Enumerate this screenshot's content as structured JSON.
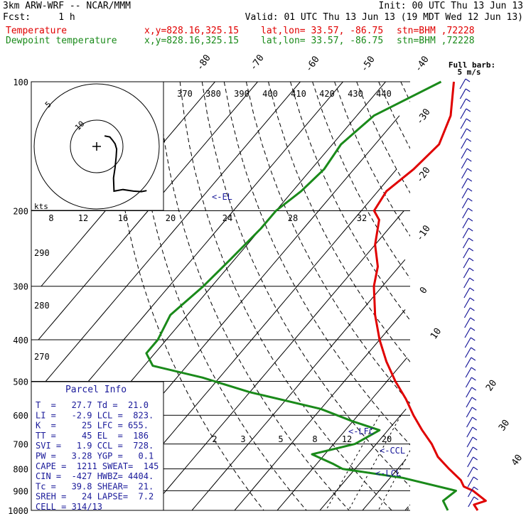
{
  "header": {
    "model": "3km ARW-WRF -- NCAR/MMM",
    "init": "Init: 00 UTC Thu 13 Jun 13",
    "fcst": "Fcst:     1 h",
    "valid": "Valid: 01 UTC Thu 13 Jun 13 (19 MDT Wed 12 Jun 13)",
    "temp_line": {
      "name": "Temperature",
      "xy": "x,y=828.16,325.15",
      "latlon": "lat,lon= 33.57, -86.75",
      "stn": "stn=BHM ,72228"
    },
    "dew_line": {
      "name": "Dewpoint temperature",
      "xy": "x,y=828.16,325.15",
      "latlon": "lat,lon= 33.57, -86.75",
      "stn": "stn=BHM ,72228"
    }
  },
  "colors": {
    "temperature": "#e00000",
    "dewpoint": "#1a8a1a",
    "wind": "#1a1a9a",
    "hodograph": "#000000",
    "grid": "#000000"
  },
  "barb_key": {
    "title": "Full barb:",
    "value": "5 m/s"
  },
  "parcel_info": {
    "title": "Parcel Info",
    "rows": [
      "T  =   27.7 Td =  21.0",
      "LI =   -2.9 LCL =  823.",
      "K  =     25 LFC = 655.",
      "TT =     45 EL  =  186",
      "SVI =   1.9 CCL =  728.",
      "PW =   3.28 YGP =   0.1",
      "CAPE =  1211 SWEAT=  145",
      "CIN =  -427 HWBZ= 4404.",
      "Tc =   39.8 SHEAR=  21.",
      "SREH =   24 LAPSE=  7.2",
      "CELL = 314/13"
    ]
  },
  "chart_data": {
    "type": "line",
    "diagram": "skew-T log-p",
    "pressure_levels": [
      100,
      200,
      300,
      400,
      500,
      600,
      700,
      800,
      900,
      1000
    ],
    "pressure_labels": [
      "100",
      "200",
      "300",
      "400",
      "500",
      "600",
      "700",
      "800",
      "900",
      "1000"
    ],
    "isotherm_labels": [
      "-80",
      "-70",
      "-60",
      "-50",
      "-40",
      "-30",
      "-20",
      "-10",
      "0",
      "10",
      "20",
      "30",
      "40"
    ],
    "theta_labels": [
      "370",
      "380",
      "390",
      "400",
      "410",
      "420",
      "430",
      "440"
    ],
    "dry_adiabat_labels": [
      "290",
      "280",
      "270"
    ],
    "mixing_ratio_labels": [
      "2",
      "3",
      "5",
      "8",
      "12",
      "20"
    ],
    "annotations": [
      "<-EL",
      "<-LFC",
      "<-CCL",
      "<-LCL"
    ],
    "series": [
      {
        "name": "Temperature",
        "points": [
          [
            100,
            -64
          ],
          [
            120,
            -58
          ],
          [
            140,
            -55
          ],
          [
            160,
            -56
          ],
          [
            180,
            -58
          ],
          [
            200,
            -57
          ],
          [
            210,
            -54
          ],
          [
            240,
            -50
          ],
          [
            270,
            -45
          ],
          [
            300,
            -42
          ],
          [
            350,
            -36
          ],
          [
            400,
            -30
          ],
          [
            450,
            -24
          ],
          [
            500,
            -18
          ],
          [
            550,
            -12
          ],
          [
            600,
            -7
          ],
          [
            650,
            -2
          ],
          [
            700,
            3
          ],
          [
            750,
            7
          ],
          [
            800,
            12
          ],
          [
            850,
            17
          ],
          [
            880,
            19
          ],
          [
            900,
            22
          ],
          [
            950,
            27
          ],
          [
            970,
            25
          ],
          [
            1000,
            27
          ]
        ]
      },
      {
        "name": "Dewpoint temperature",
        "points": [
          [
            100,
            -67
          ],
          [
            120,
            -76
          ],
          [
            140,
            -78
          ],
          [
            160,
            -77
          ],
          [
            180,
            -78
          ],
          [
            200,
            -80
          ],
          [
            220,
            -80
          ],
          [
            260,
            -81
          ],
          [
            300,
            -82
          ],
          [
            350,
            -84
          ],
          [
            400,
            -82
          ],
          [
            430,
            -82
          ],
          [
            460,
            -78
          ],
          [
            490,
            -64
          ],
          [
            530,
            -50
          ],
          [
            580,
            -30
          ],
          [
            620,
            -20
          ],
          [
            650,
            -12
          ],
          [
            700,
            -15
          ],
          [
            740,
            -23
          ],
          [
            780,
            -16
          ],
          [
            800,
            -13
          ],
          [
            840,
            3
          ],
          [
            900,
            18
          ],
          [
            950,
            17
          ],
          [
            1000,
            20
          ]
        ]
      }
    ],
    "hodograph": {
      "rings": [
        "5",
        "10"
      ],
      "units": "kts",
      "trace_uv": [
        [
          1.5,
          2
        ],
        [
          2.5,
          1.8
        ],
        [
          3,
          1.2
        ],
        [
          3.5,
          0.5
        ],
        [
          3.8,
          -0.5
        ],
        [
          3.7,
          -2
        ],
        [
          3.5,
          -4
        ],
        [
          3.2,
          -6
        ],
        [
          3.3,
          -8.5
        ],
        [
          5,
          -8.2
        ],
        [
          7,
          -8.5
        ],
        [
          8.5,
          -8.6
        ],
        [
          9.5,
          -8.4
        ]
      ]
    }
  }
}
